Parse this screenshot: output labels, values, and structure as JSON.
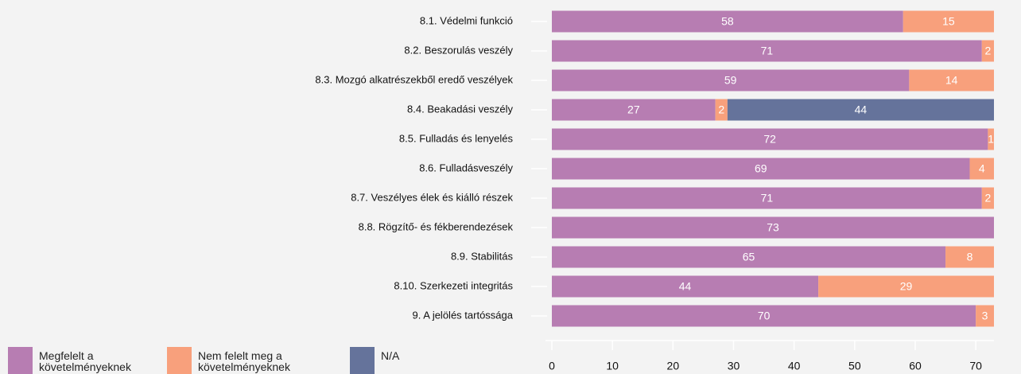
{
  "chart_data": {
    "type": "stacked-bar-horizontal",
    "categories": [
      "8.1. Védelmi funkció",
      "8.2. Beszorulás veszély",
      "8.3. Mozgó alkatrészekből eredő veszélyek",
      "8.4. Beakadási veszély",
      "8.5. Fulladás és lenyelés",
      "8.6. Fulladásveszély",
      "8.7. Veszélyes élek és kiálló részek",
      "8.8. Rögzítő- és fékberendezések",
      "8.9. Stabilitás",
      "8.10. Szerkezeti integritás",
      "9. A jelölés tartóssága"
    ],
    "series": [
      {
        "name": "Megfelelt a követelményeknek",
        "color": "#b77db2",
        "values": [
          58,
          71,
          59,
          27,
          72,
          69,
          71,
          73,
          65,
          44,
          70
        ]
      },
      {
        "name": "Nem felelt meg a követelményeknek",
        "color": "#f8a07c",
        "values": [
          15,
          2,
          14,
          2,
          1,
          4,
          2,
          null,
          8,
          29,
          3
        ]
      },
      {
        "name": "N/A",
        "color": "#65739b",
        "values": [
          null,
          null,
          null,
          44,
          null,
          null,
          null,
          null,
          null,
          null,
          null
        ]
      }
    ],
    "xlim": [
      0,
      73
    ],
    "xticks": [
      0,
      10,
      20,
      30,
      40,
      50,
      60,
      70
    ]
  }
}
